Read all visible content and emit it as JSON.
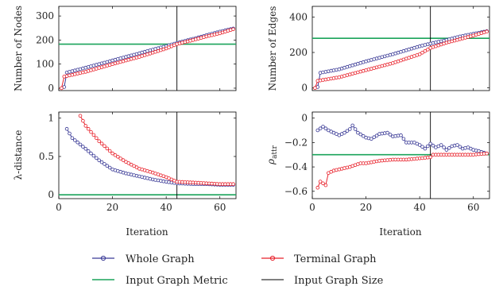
{
  "chart_data": [
    {
      "type": "line",
      "xlabel": "",
      "ylabel": "Number of Nodes",
      "xlim": [
        0,
        66
      ],
      "ylim": [
        -10,
        340
      ],
      "xticks": [
        0,
        20,
        40,
        60
      ],
      "yticks": [
        0,
        100,
        200,
        300
      ],
      "xticklabels": [],
      "yticklabels": [
        "0",
        "100",
        "200",
        "300"
      ],
      "input_graph_metric": 183,
      "input_graph_size": 44,
      "series": [
        {
          "name": "Whole Graph",
          "x_start": 2,
          "x_end": 65,
          "values": [
            [
              2,
              5
            ],
            [
              3,
              65
            ],
            [
              10,
              85
            ],
            [
              20,
              115
            ],
            [
              30,
              145
            ],
            [
              40,
              175
            ],
            [
              44,
              188
            ],
            [
              50,
              205
            ],
            [
              55,
              220
            ],
            [
              60,
              235
            ],
            [
              65,
              248
            ]
          ]
        },
        {
          "name": "Terminal Graph",
          "x_start": 1,
          "x_end": 65,
          "values": [
            [
              1,
              0
            ],
            [
              2,
              48
            ],
            [
              10,
              68
            ],
            [
              20,
              100
            ],
            [
              30,
              130
            ],
            [
              40,
              165
            ],
            [
              44,
              183
            ],
            [
              50,
              200
            ],
            [
              55,
              215
            ],
            [
              60,
              228
            ],
            [
              65,
              245
            ]
          ]
        }
      ]
    },
    {
      "type": "line",
      "xlabel": "",
      "ylabel": "Number of Edges",
      "xlim": [
        0,
        66
      ],
      "ylim": [
        -15,
        460
      ],
      "xticks": [
        0,
        20,
        40,
        60
      ],
      "yticks": [
        0,
        200,
        400
      ],
      "xticklabels": [],
      "yticklabels": [
        "0",
        "200",
        "400"
      ],
      "input_graph_metric": 280,
      "input_graph_size": 44,
      "series": [
        {
          "name": "Whole Graph",
          "x_start": 2,
          "x_end": 65,
          "values": [
            [
              2,
              5
            ],
            [
              3,
              85
            ],
            [
              10,
              105
            ],
            [
              20,
              150
            ],
            [
              30,
              190
            ],
            [
              40,
              235
            ],
            [
              44,
              250
            ],
            [
              50,
              270
            ],
            [
              55,
              290
            ],
            [
              60,
              305
            ],
            [
              65,
              320
            ]
          ]
        },
        {
          "name": "Terminal Graph",
          "x_start": 1,
          "x_end": 65,
          "values": [
            [
              1,
              0
            ],
            [
              2,
              40
            ],
            [
              10,
              60
            ],
            [
              20,
              100
            ],
            [
              30,
              140
            ],
            [
              40,
              190
            ],
            [
              44,
              225
            ],
            [
              50,
              255
            ],
            [
              55,
              275
            ],
            [
              60,
              295
            ],
            [
              65,
              318
            ]
          ]
        }
      ]
    },
    {
      "type": "line",
      "xlabel": "Iteration",
      "ylabel": "λ-distance",
      "xlim": [
        0,
        66
      ],
      "ylim": [
        -0.05,
        1.08
      ],
      "xticks": [
        0,
        20,
        40,
        60
      ],
      "yticks": [
        0,
        0.5,
        1
      ],
      "xticklabels": [
        "0",
        "20",
        "40",
        "60"
      ],
      "yticklabels": [
        "0",
        "0.5",
        "1"
      ],
      "input_graph_metric": 0,
      "input_graph_size": 44,
      "series": [
        {
          "name": "Whole Graph",
          "x_start": 3,
          "x_end": 65,
          "values": [
            [
              3,
              0.86
            ],
            [
              5,
              0.74
            ],
            [
              10,
              0.6
            ],
            [
              15,
              0.45
            ],
            [
              20,
              0.33
            ],
            [
              25,
              0.28
            ],
            [
              30,
              0.24
            ],
            [
              35,
              0.2
            ],
            [
              40,
              0.17
            ],
            [
              44,
              0.15
            ],
            [
              50,
              0.14
            ],
            [
              55,
              0.14
            ],
            [
              60,
              0.13
            ],
            [
              65,
              0.13
            ]
          ]
        },
        {
          "name": "Terminal Graph",
          "x_start": 8,
          "x_end": 65,
          "values": [
            [
              8,
              1.03
            ],
            [
              10,
              0.9
            ],
            [
              15,
              0.7
            ],
            [
              20,
              0.54
            ],
            [
              25,
              0.43
            ],
            [
              30,
              0.34
            ],
            [
              35,
              0.29
            ],
            [
              40,
              0.23
            ],
            [
              44,
              0.17
            ],
            [
              50,
              0.16
            ],
            [
              55,
              0.15
            ],
            [
              60,
              0.14
            ],
            [
              65,
              0.14
            ]
          ]
        }
      ]
    },
    {
      "type": "line",
      "xlabel": "Iteration",
      "ylabel": "ρ_attr",
      "ylabel_main": "ρ",
      "ylabel_sub": "attr",
      "xlim": [
        0,
        66
      ],
      "ylim": [
        -0.66,
        0.05
      ],
      "xticks": [
        0,
        20,
        40,
        60
      ],
      "yticks": [
        0,
        -0.2,
        -0.4,
        -0.6
      ],
      "xticklabels": [
        "0",
        "20",
        "40",
        "60"
      ],
      "yticklabels": [
        "0",
        "−0.2",
        "−0.4",
        "−0.6"
      ],
      "input_graph_metric": -0.3,
      "input_graph_size": 44,
      "series": [
        {
          "name": "Whole Graph",
          "x_start": 2,
          "x_end": 65,
          "values": [
            [
              2,
              -0.1
            ],
            [
              4,
              -0.07
            ],
            [
              6,
              -0.1
            ],
            [
              8,
              -0.12
            ],
            [
              10,
              -0.14
            ],
            [
              12,
              -0.12
            ],
            [
              14,
              -0.09
            ],
            [
              15,
              -0.06
            ],
            [
              17,
              -0.12
            ],
            [
              20,
              -0.16
            ],
            [
              22,
              -0.17
            ],
            [
              25,
              -0.13
            ],
            [
              28,
              -0.12
            ],
            [
              30,
              -0.15
            ],
            [
              33,
              -0.14
            ],
            [
              35,
              -0.2
            ],
            [
              38,
              -0.2
            ],
            [
              40,
              -0.22
            ],
            [
              42,
              -0.25
            ],
            [
              44,
              -0.21
            ],
            [
              46,
              -0.24
            ],
            [
              48,
              -0.22
            ],
            [
              50,
              -0.26
            ],
            [
              52,
              -0.23
            ],
            [
              54,
              -0.22
            ],
            [
              56,
              -0.25
            ],
            [
              58,
              -0.24
            ],
            [
              60,
              -0.26
            ],
            [
              62,
              -0.27
            ],
            [
              65,
              -0.29
            ]
          ]
        },
        {
          "name": "Terminal Graph",
          "x_start": 2,
          "x_end": 65,
          "values": [
            [
              2,
              -0.57
            ],
            [
              3,
              -0.52
            ],
            [
              5,
              -0.55
            ],
            [
              6,
              -0.45
            ],
            [
              8,
              -0.43
            ],
            [
              10,
              -0.42
            ],
            [
              14,
              -0.4
            ],
            [
              18,
              -0.37
            ],
            [
              20,
              -0.37
            ],
            [
              25,
              -0.35
            ],
            [
              30,
              -0.34
            ],
            [
              35,
              -0.34
            ],
            [
              40,
              -0.33
            ],
            [
              44,
              -0.32
            ],
            [
              45,
              -0.3
            ],
            [
              50,
              -0.3
            ],
            [
              55,
              -0.3
            ],
            [
              60,
              -0.3
            ],
            [
              65,
              -0.29
            ]
          ]
        }
      ]
    }
  ],
  "legend": {
    "placement": "bottom",
    "items": [
      {
        "label": "Whole Graph",
        "kind": "marker-line",
        "color": "#3a3a96"
      },
      {
        "label": "Terminal Graph",
        "kind": "marker-line",
        "color": "#e8202a"
      },
      {
        "label": "Input Graph Metric",
        "kind": "line",
        "color": "#1aa35a"
      },
      {
        "label": "Input Graph Size",
        "kind": "line",
        "color": "#000000"
      }
    ]
  },
  "colors": {
    "whole": "#3a3a96",
    "terminal": "#e8202a",
    "metric": "#1aa35a",
    "size": "#000000"
  }
}
